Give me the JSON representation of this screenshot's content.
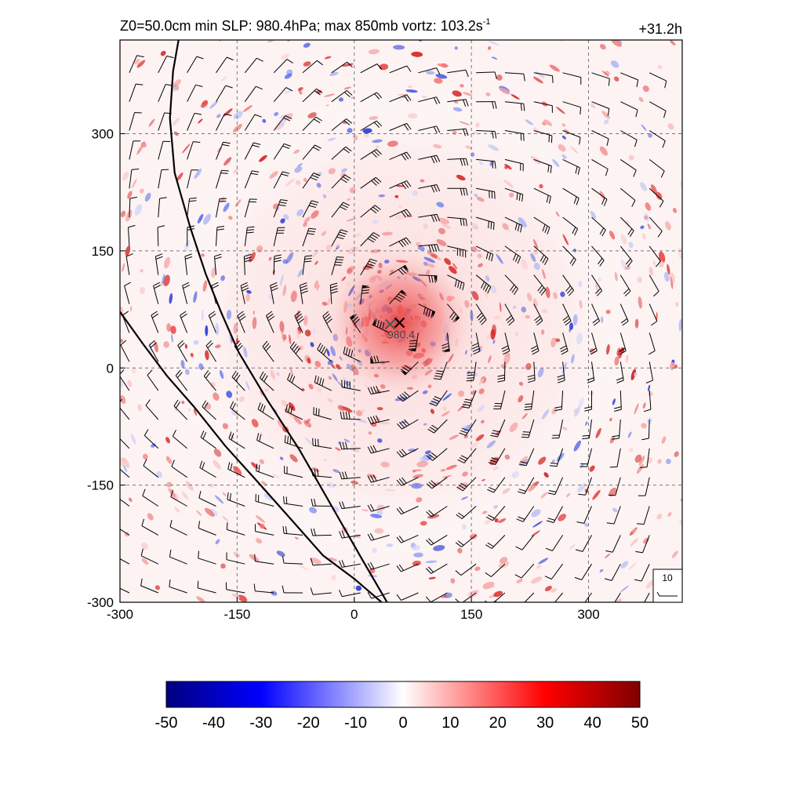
{
  "chart_data": {
    "type": "heatmap",
    "title": "Z0=50.0cm  min SLP: 980.4hPa; max 850mb vortz: 103.2s",
    "title_superscript": "-1",
    "time_label": "+31.2h",
    "xlim": [
      -300,
      420
    ],
    "ylim": [
      -300,
      420
    ],
    "x_ticks": [
      -300,
      -150,
      0,
      150,
      300
    ],
    "y_ticks": [
      -300,
      -150,
      0,
      150,
      300
    ],
    "x_tick_labels": [
      "-300",
      "-150",
      "0",
      "150",
      "300"
    ],
    "y_tick_labels": [
      "-300",
      "-150",
      "0",
      "150",
      "300"
    ],
    "grid": "dashed",
    "center_markers": [
      {
        "x": 46,
        "y": 56,
        "symbol": "x",
        "color": "#555555"
      },
      {
        "x": 58,
        "y": 58,
        "symbol": "x",
        "color": "#000000"
      }
    ],
    "min_slp_label": {
      "text": "980.4",
      "x": 48,
      "y": 46
    },
    "storm_center": {
      "x": 58,
      "y": 58
    },
    "coastlines": [
      [
        [
          -225,
          420
        ],
        [
          -232,
          380
        ],
        [
          -236,
          320
        ],
        [
          -230,
          250
        ],
        [
          -210,
          180
        ],
        [
          -190,
          120
        ],
        [
          -170,
          70
        ],
        [
          -148,
          20
        ],
        [
          -112,
          -40
        ],
        [
          -70,
          -105
        ],
        [
          -30,
          -175
        ],
        [
          10,
          -245
        ],
        [
          42,
          -300
        ]
      ],
      [
        [
          -300,
          72
        ],
        [
          -270,
          30
        ],
        [
          -240,
          -10
        ],
        [
          -205,
          -50
        ],
        [
          -165,
          -100
        ],
        [
          -120,
          -150
        ],
        [
          -80,
          -195
        ],
        [
          -40,
          -240
        ],
        [
          0,
          -270
        ],
        [
          35,
          -300
        ]
      ]
    ],
    "wind_barb_reference": {
      "label": "10",
      "value": 10
    },
    "colorbar": {
      "min": -50,
      "max": 50,
      "ticks": [
        -50,
        -40,
        -30,
        -20,
        -10,
        0,
        10,
        20,
        30,
        40,
        50
      ],
      "tick_labels": [
        "-50",
        "-40",
        "-30",
        "-20",
        "-10",
        "0",
        "10",
        "20",
        "30",
        "40",
        "50"
      ],
      "colors": [
        "#000080",
        "#0000ff",
        "#ffffff",
        "#ff0000",
        "#800000"
      ]
    }
  }
}
